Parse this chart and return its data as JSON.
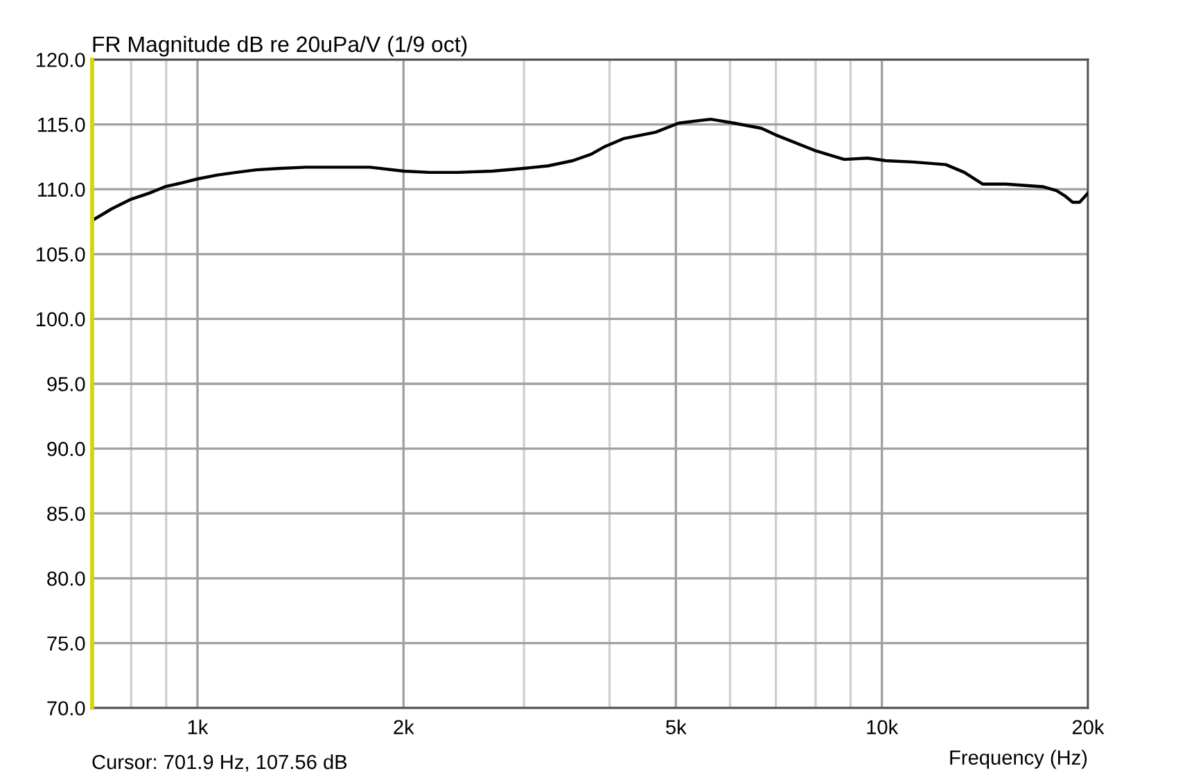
{
  "chart_data": {
    "type": "line",
    "title": "FR Magnitude dB re 20uPa/V (1/9 oct)",
    "xlabel": "Frequency (Hz)",
    "annotations": [
      "Cursor: 701.9 Hz, 107.56 dB"
    ],
    "log": "x",
    "grid": true,
    "line_style": "solid",
    "xlim": [
      700,
      20000
    ],
    "xticks": [
      {
        "value": 800,
        "label": null
      },
      {
        "value": 900,
        "label": null
      },
      {
        "value": 1000,
        "label": "1k"
      },
      {
        "value": 2000,
        "label": "2k"
      },
      {
        "value": 3000,
        "label": null
      },
      {
        "value": 4000,
        "label": null
      },
      {
        "value": 5000,
        "label": "5k"
      },
      {
        "value": 6000,
        "label": null
      },
      {
        "value": 7000,
        "label": null
      },
      {
        "value": 8000,
        "label": null
      },
      {
        "value": 9000,
        "label": null
      },
      {
        "value": 10000,
        "label": "10k"
      },
      {
        "value": 20000,
        "label": "20k"
      }
    ],
    "ylim": [
      70,
      120
    ],
    "yticks": [
      {
        "value": 70,
        "label": "70.0"
      },
      {
        "value": 75,
        "label": "75.0"
      },
      {
        "value": 80,
        "label": "80.0"
      },
      {
        "value": 85,
        "label": "85.0"
      },
      {
        "value": 90,
        "label": "90.0"
      },
      {
        "value": 95,
        "label": "95.0"
      },
      {
        "value": 100,
        "label": "100.0"
      },
      {
        "value": 105,
        "label": "105.0"
      },
      {
        "value": 110,
        "label": "110.0"
      },
      {
        "value": 115,
        "label": "115.0"
      },
      {
        "value": 120,
        "label": "120.0"
      }
    ],
    "ref_lines": [
      {
        "axis": "x",
        "value": 701.9,
        "color": "#d8d800"
      }
    ],
    "series": [
      {
        "color": "#000000",
        "x": [
          702,
          750,
          797,
          850,
          897,
          950,
          1000,
          1070,
          1139,
          1220,
          1310,
          1440,
          1578,
          1786,
          2000,
          2185,
          2398,
          2700,
          2981,
          3250,
          3533,
          3760,
          3940,
          4190,
          4670,
          5047,
          5625,
          6080,
          6370,
          6670,
          6990,
          7970,
          8810,
          9530,
          10140,
          11120,
          12400,
          13200,
          14030,
          15170,
          17170,
          17990,
          18500,
          19000,
          19450,
          20000
        ],
        "values": [
          107.6,
          108.5,
          109.2,
          109.7,
          110.2,
          110.5,
          110.8,
          111.1,
          111.3,
          111.5,
          111.6,
          111.7,
          111.7,
          111.7,
          111.4,
          111.3,
          111.3,
          111.4,
          111.6,
          111.8,
          112.2,
          112.7,
          113.3,
          113.9,
          114.4,
          115.1,
          115.4,
          115.1,
          114.9,
          114.7,
          114.2,
          113.0,
          112.3,
          112.4,
          112.2,
          112.1,
          111.9,
          111.3,
          110.4,
          110.4,
          110.2,
          109.9,
          109.5,
          109.0,
          109.0,
          109.7
        ]
      }
    ]
  }
}
